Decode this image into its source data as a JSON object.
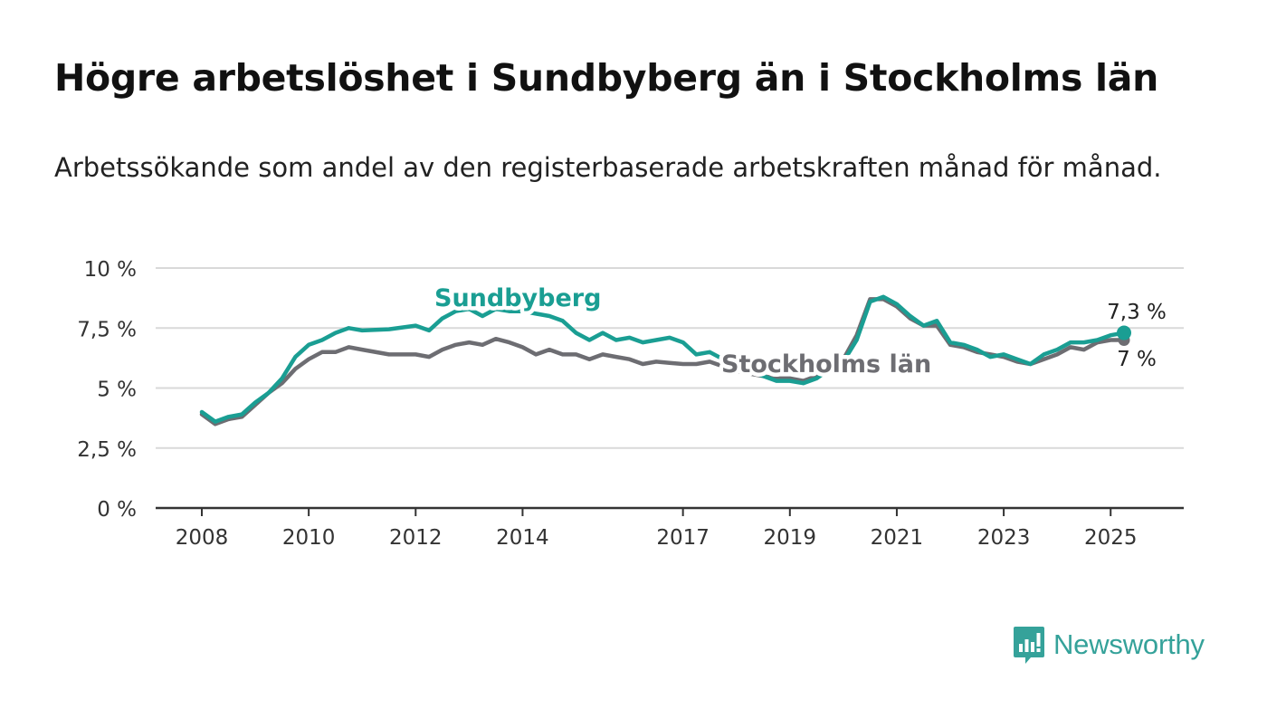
{
  "title": "Högre arbetslöshet i Sundbyberg än i Stockholms län",
  "subtitle": "Arbetssökande som andel av den registerbaserade arbetskraften månad för månad.",
  "logo": {
    "text": "Newsworthy",
    "icon": "bar-chart-speech-bubble-icon"
  },
  "chart_data": {
    "type": "line",
    "xlim": [
      2008,
      2025.5
    ],
    "ylim": [
      0,
      10
    ],
    "y_ticks": [
      0,
      2.5,
      5,
      7.5,
      10
    ],
    "y_tick_labels": [
      "0 %",
      "2,5 %",
      "5 %",
      "7,5 %",
      "10 %"
    ],
    "x_ticks": [
      2008,
      2010,
      2012,
      2014,
      2017,
      2019,
      2021,
      2023,
      2025
    ],
    "x_tick_labels": [
      "2008",
      "2010",
      "2012",
      "2014",
      "2017",
      "2019",
      "2021",
      "2023",
      "2025"
    ],
    "grid": true,
    "series": [
      {
        "name": "Sundbyberg",
        "color": "#1a9e93",
        "end_label": "7,3 %",
        "points": [
          [
            2008.0,
            4.0
          ],
          [
            2008.25,
            3.6
          ],
          [
            2008.5,
            3.8
          ],
          [
            2008.75,
            3.9
          ],
          [
            2009.0,
            4.4
          ],
          [
            2009.25,
            4.8
          ],
          [
            2009.5,
            5.4
          ],
          [
            2009.75,
            6.3
          ],
          [
            2010.0,
            6.8
          ],
          [
            2010.25,
            7.0
          ],
          [
            2010.5,
            7.3
          ],
          [
            2010.75,
            7.5
          ],
          [
            2011.0,
            7.4
          ],
          [
            2011.5,
            7.45
          ],
          [
            2012.0,
            7.6
          ],
          [
            2012.25,
            7.4
          ],
          [
            2012.5,
            7.9
          ],
          [
            2012.75,
            8.2
          ],
          [
            2013.0,
            8.3
          ],
          [
            2013.25,
            8.0
          ],
          [
            2013.5,
            8.3
          ],
          [
            2013.75,
            8.2
          ],
          [
            2014.0,
            8.2
          ],
          [
            2014.25,
            8.1
          ],
          [
            2014.5,
            8.0
          ],
          [
            2014.75,
            7.8
          ],
          [
            2015.0,
            7.3
          ],
          [
            2015.25,
            7.0
          ],
          [
            2015.5,
            7.3
          ],
          [
            2015.75,
            7.0
          ],
          [
            2016.0,
            7.1
          ],
          [
            2016.25,
            6.9
          ],
          [
            2016.5,
            7.0
          ],
          [
            2016.75,
            7.1
          ],
          [
            2017.0,
            6.9
          ],
          [
            2017.25,
            6.4
          ],
          [
            2017.5,
            6.5
          ],
          [
            2017.75,
            6.2
          ],
          [
            2018.0,
            5.9
          ],
          [
            2018.25,
            5.7
          ],
          [
            2018.5,
            5.5
          ],
          [
            2018.75,
            5.3
          ],
          [
            2019.0,
            5.3
          ],
          [
            2019.25,
            5.2
          ],
          [
            2019.5,
            5.4
          ],
          [
            2019.75,
            5.8
          ],
          [
            2020.0,
            6.1
          ],
          [
            2020.25,
            7.0
          ],
          [
            2020.5,
            8.6
          ],
          [
            2020.75,
            8.8
          ],
          [
            2021.0,
            8.5
          ],
          [
            2021.25,
            8.0
          ],
          [
            2021.5,
            7.6
          ],
          [
            2021.75,
            7.8
          ],
          [
            2022.0,
            6.9
          ],
          [
            2022.25,
            6.8
          ],
          [
            2022.5,
            6.6
          ],
          [
            2022.75,
            6.3
          ],
          [
            2023.0,
            6.4
          ],
          [
            2023.25,
            6.2
          ],
          [
            2023.5,
            6.0
          ],
          [
            2023.75,
            6.4
          ],
          [
            2024.0,
            6.6
          ],
          [
            2024.25,
            6.9
          ],
          [
            2024.5,
            6.9
          ],
          [
            2024.75,
            7.0
          ],
          [
            2025.0,
            7.2
          ],
          [
            2025.25,
            7.3
          ]
        ]
      },
      {
        "name": "Stockholms län",
        "color": "#6d6d72",
        "end_label": "7 %",
        "points": [
          [
            2008.0,
            3.9
          ],
          [
            2008.25,
            3.5
          ],
          [
            2008.5,
            3.7
          ],
          [
            2008.75,
            3.8
          ],
          [
            2009.0,
            4.3
          ],
          [
            2009.25,
            4.8
          ],
          [
            2009.5,
            5.2
          ],
          [
            2009.75,
            5.8
          ],
          [
            2010.0,
            6.2
          ],
          [
            2010.25,
            6.5
          ],
          [
            2010.5,
            6.5
          ],
          [
            2010.75,
            6.7
          ],
          [
            2011.0,
            6.6
          ],
          [
            2011.5,
            6.4
          ],
          [
            2012.0,
            6.4
          ],
          [
            2012.25,
            6.3
          ],
          [
            2012.5,
            6.6
          ],
          [
            2012.75,
            6.8
          ],
          [
            2013.0,
            6.9
          ],
          [
            2013.25,
            6.8
          ],
          [
            2013.5,
            7.05
          ],
          [
            2013.75,
            6.9
          ],
          [
            2014.0,
            6.7
          ],
          [
            2014.25,
            6.4
          ],
          [
            2014.5,
            6.6
          ],
          [
            2014.75,
            6.4
          ],
          [
            2015.0,
            6.4
          ],
          [
            2015.25,
            6.2
          ],
          [
            2015.5,
            6.4
          ],
          [
            2015.75,
            6.3
          ],
          [
            2016.0,
            6.2
          ],
          [
            2016.25,
            6.0
          ],
          [
            2016.5,
            6.1
          ],
          [
            2016.75,
            6.05
          ],
          [
            2017.0,
            6.0
          ],
          [
            2017.25,
            6.0
          ],
          [
            2017.5,
            6.1
          ],
          [
            2017.75,
            5.9
          ],
          [
            2018.0,
            5.7
          ],
          [
            2018.25,
            5.6
          ],
          [
            2018.5,
            5.5
          ],
          [
            2018.75,
            5.4
          ],
          [
            2019.0,
            5.4
          ],
          [
            2019.25,
            5.3
          ],
          [
            2019.5,
            5.5
          ],
          [
            2019.75,
            5.8
          ],
          [
            2020.0,
            6.2
          ],
          [
            2020.25,
            7.2
          ],
          [
            2020.5,
            8.7
          ],
          [
            2020.75,
            8.7
          ],
          [
            2021.0,
            8.4
          ],
          [
            2021.25,
            7.9
          ],
          [
            2021.5,
            7.6
          ],
          [
            2021.75,
            7.6
          ],
          [
            2022.0,
            6.8
          ],
          [
            2022.25,
            6.7
          ],
          [
            2022.5,
            6.5
          ],
          [
            2022.75,
            6.4
          ],
          [
            2023.0,
            6.3
          ],
          [
            2023.25,
            6.1
          ],
          [
            2023.5,
            6.0
          ],
          [
            2023.75,
            6.2
          ],
          [
            2024.0,
            6.4
          ],
          [
            2024.25,
            6.7
          ],
          [
            2024.5,
            6.6
          ],
          [
            2024.75,
            6.9
          ],
          [
            2025.0,
            7.0
          ],
          [
            2025.25,
            7.0
          ]
        ]
      }
    ]
  }
}
